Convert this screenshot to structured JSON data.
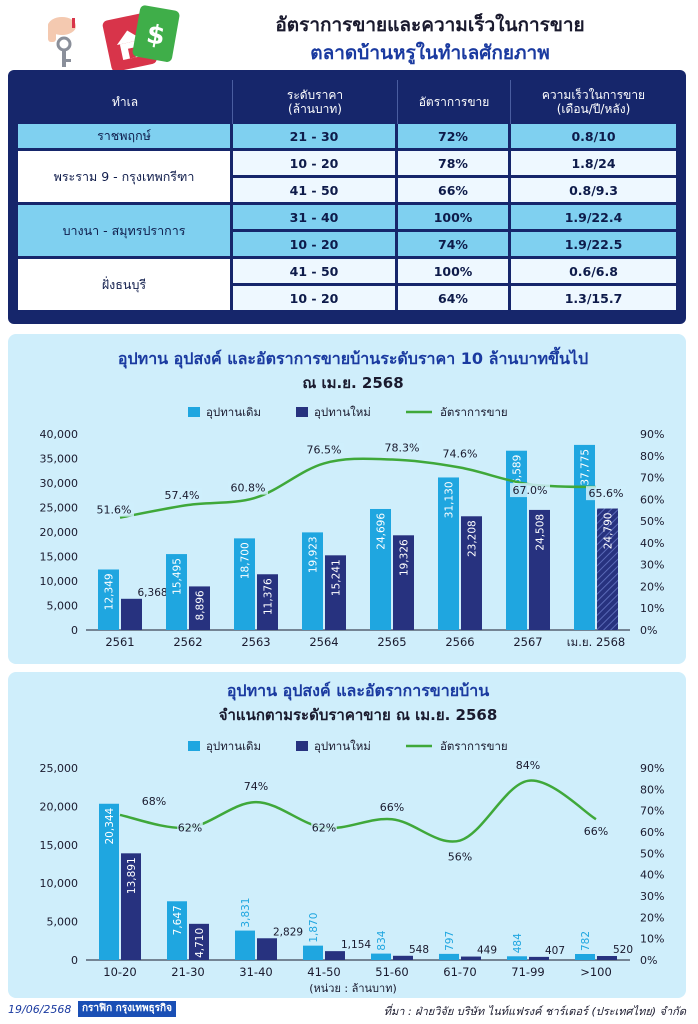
{
  "header": {
    "title_line1": "อัตราการขายและความเร็วในการขาย",
    "title_line2": "ตลาดบ้านหรูในทำเลศักยภาพ"
  },
  "table": {
    "columns": [
      "ทำเล",
      "ระดับราคา\n(ล้านบาท)",
      "อัตราการขาย",
      "ความเร็วในการขาย\n(เดือน/ปี/หลัง)"
    ],
    "groups": [
      {
        "location": "ราชพฤกษ์",
        "rows": [
          {
            "price": "21 - 30",
            "rate": "72%",
            "speed": "0.8/10"
          }
        ]
      },
      {
        "location": "พระราม 9 - กรุงเทพกรีฑา",
        "rows": [
          {
            "price": "10 - 20",
            "rate": "78%",
            "speed": "1.8/24"
          },
          {
            "price": "41 - 50",
            "rate": "66%",
            "speed": "0.8/9.3"
          }
        ]
      },
      {
        "location": "บางนา - สมุทรปราการ",
        "rows": [
          {
            "price": "31 - 40",
            "rate": "100%",
            "speed": "1.9/22.4"
          },
          {
            "price": "10 - 20",
            "rate": "74%",
            "speed": "1.9/22.5"
          }
        ]
      },
      {
        "location": "ฝั่งธนบุรี",
        "rows": [
          {
            "price": "41 - 50",
            "rate": "100%",
            "speed": "0.6/6.8"
          },
          {
            "price": "10 - 20",
            "rate": "64%",
            "speed": "1.3/15.7"
          }
        ]
      }
    ]
  },
  "chart_data": [
    {
      "type": "bar",
      "title": "อุปทาน อุปสงค์ และอัตราการขายบ้านระดับราคา 10 ล้านบาทขึ้นไป",
      "subtitle": "ณ เม.ย. 2568",
      "categories": [
        "2561",
        "2562",
        "2563",
        "2564",
        "2565",
        "2566",
        "2567",
        "เม.ย. 2568"
      ],
      "series": [
        {
          "name": "อุปทานเดิม",
          "type": "bar",
          "color": "#1fa6e0",
          "values": [
            12349,
            15495,
            18700,
            19923,
            24696,
            31130,
            36589,
            37775
          ]
        },
        {
          "name": "อุปทานใหม่",
          "type": "bar",
          "color": "#27327f",
          "values": [
            6368,
            8896,
            11376,
            15241,
            19326,
            23208,
            24508,
            24790
          ]
        },
        {
          "name": "อัตราการขาย",
          "type": "line",
          "color": "#3fa83a",
          "values": [
            51.6,
            57.4,
            60.8,
            76.5,
            78.3,
            74.6,
            67.0,
            65.6
          ],
          "labels": [
            "51.6%",
            "57.4%",
            "60.8%",
            "76.5%",
            "78.3%",
            "74.6%",
            "67.0%",
            "65.6%"
          ]
        }
      ],
      "value_labels_old": [
        "12,349",
        "15,495",
        "18,700",
        "19,923",
        "24,696",
        "31,130",
        "36,589",
        "37,775"
      ],
      "value_labels_new": [
        "6,368",
        "8,896",
        "11,376",
        "15,241",
        "19,326",
        "23,208",
        "24,508",
        "24,790"
      ],
      "ylim": [
        0,
        40000
      ],
      "y_ticks": [
        "0",
        "5,000",
        "10,000",
        "15,000",
        "20,000",
        "25,000",
        "30,000",
        "35,000",
        "40,000"
      ],
      "y2lim": [
        0,
        90
      ],
      "y2_ticks": [
        "0%",
        "10%",
        "20%",
        "30%",
        "40%",
        "50%",
        "60%",
        "70%",
        "80%",
        "90%"
      ],
      "legend_position": "top"
    },
    {
      "type": "bar",
      "title": "อุปทาน อุปสงค์ และอัตราการขายบ้าน",
      "subtitle": "จำแนกตามระดับราคาขาย ณ เม.ย. 2568",
      "xlabel": "(หน่วย : ล้านบาท)",
      "categories": [
        "10-20",
        "21-30",
        "31-40",
        "41-50",
        "51-60",
        "61-70",
        "71-99",
        ">100"
      ],
      "series": [
        {
          "name": "อุปทานเดิม",
          "type": "bar",
          "color": "#1fa6e0",
          "values": [
            20344,
            7647,
            3831,
            1870,
            834,
            797,
            484,
            782
          ]
        },
        {
          "name": "อุปทานใหม่",
          "type": "bar",
          "color": "#27327f",
          "values": [
            13891,
            4710,
            2829,
            1154,
            548,
            449,
            407,
            520
          ]
        },
        {
          "name": "อัตราการขาย",
          "type": "line",
          "color": "#3fa83a",
          "values": [
            68,
            62,
            74,
            62,
            66,
            56,
            84,
            66
          ],
          "labels": [
            "68%",
            "62%",
            "74%",
            "62%",
            "66%",
            "56%",
            "84%",
            "66%"
          ]
        }
      ],
      "value_labels_old": [
        "20,344",
        "7,647",
        "3,831",
        "1,870",
        "834",
        "797",
        "484",
        "782"
      ],
      "value_labels_new": [
        "13,891",
        "4,710",
        "2,829",
        "1,154",
        "548",
        "449",
        "407",
        "520"
      ],
      "ylim": [
        0,
        25000
      ],
      "y_ticks": [
        "0",
        "5,000",
        "10,000",
        "15,000",
        "20,000",
        "25,000"
      ],
      "y2lim": [
        0,
        90
      ],
      "y2_ticks": [
        "0%",
        "10%",
        "20%",
        "30%",
        "40%",
        "50%",
        "60%",
        "70%",
        "80%",
        "90%"
      ],
      "legend_position": "top"
    }
  ],
  "footer": {
    "date": "19/06/2568",
    "brand": "กราฟิก กรุงเทพธุรกิจ",
    "source": "ที่มา : ฝ่ายวิจัย บริษัท ไนท์แฟรงค์ ชาร์เตอร์ (ประเทศไทย) จำกัด"
  }
}
